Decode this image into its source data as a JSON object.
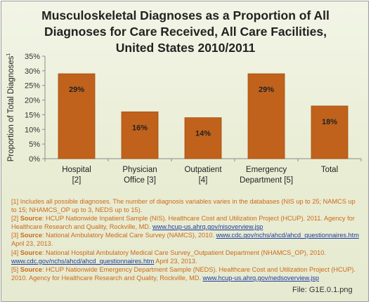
{
  "title_lines": [
    "Musculoskeletal Diagnoses as a Proportion of All",
    "Diagnoses for Care Received, All Care Facilities,",
    "United States 2010/2011"
  ],
  "chart_data": {
    "type": "bar",
    "title": "Musculoskeletal Diagnoses as a Proportion of All Diagnoses for Care Received, All Care Facilities, United States 2010/2011",
    "ylabel": "Proportion of Total Diagnoses",
    "ylabel_sup": "1",
    "categories": [
      [
        "Hospital",
        "[2]"
      ],
      [
        "Physician",
        "Office [3]"
      ],
      [
        "Outpatient",
        "[4]"
      ],
      [
        "Emergency",
        "Department [5]"
      ],
      [
        "Total"
      ]
    ],
    "values": [
      29,
      16,
      14,
      29,
      18
    ],
    "data_labels": [
      "29%",
      "16%",
      "14%",
      "29%",
      "18%"
    ],
    "yticks": [
      "0%",
      "5%",
      "10%",
      "15%",
      "20%",
      "25%",
      "30%",
      "35%"
    ],
    "ylim": [
      0,
      35
    ],
    "grid": false,
    "bar_color": "#c0621c"
  },
  "notes": {
    "n1": "[1] Includes all possible diagnoses. The number of diagnosis variables varies in the databases (NIS up to 25; NAMCS up to 15; NHAMCS_OP up to 3, NEDS up to 15).",
    "n2_prefix": "[2] ",
    "n2_source": "Source",
    "n2_text": ": HCUP Nationwide Inpatient Sample (NIS). Healthcare Cost and Utilization Project (HCUP). 2011. Agency for Healthcare Research and Quality, Rockville, MD. ",
    "n2_link": "www.hcup-us.ahrq.gov/nisoverview.jsp",
    "n3_prefix": "[3] ",
    "n3_source": "Source",
    "n3_text": ": National Ambulatory Medical Care Survey (NAMCS), 2010. ",
    "n3_link": "www.cdc.gov/nchs/ahcd/ahcd_questionnaires.htm",
    "n3_after": " April 23, 2013.",
    "n4_prefix": "[4] ",
    "n4_source": "Source",
    "n4_text": ": National Hospital Ambulatory Medical Care Survey_Outpatient Department (NHAMCS_OP), 2010. ",
    "n4_link": "www.cdc.gov/nchs/ahcd/ahcd_questionnaires.htm",
    "n4_after": " April 23, 2013.",
    "n5_prefix": "[5] ",
    "n5_source": "Source",
    "n5_text": ": HCUP Nationwide Emergency Department Sample (NEDS). Healthcare Cost and Utilization Project (HCUP). 2010. Agency for Healthcare Research and Quality, Rockville, MD. ",
    "n5_link": "www.hcup-us.ahrq.gov/nedsoverview.jsp"
  },
  "file_label": "File: G1E.0.1.png"
}
